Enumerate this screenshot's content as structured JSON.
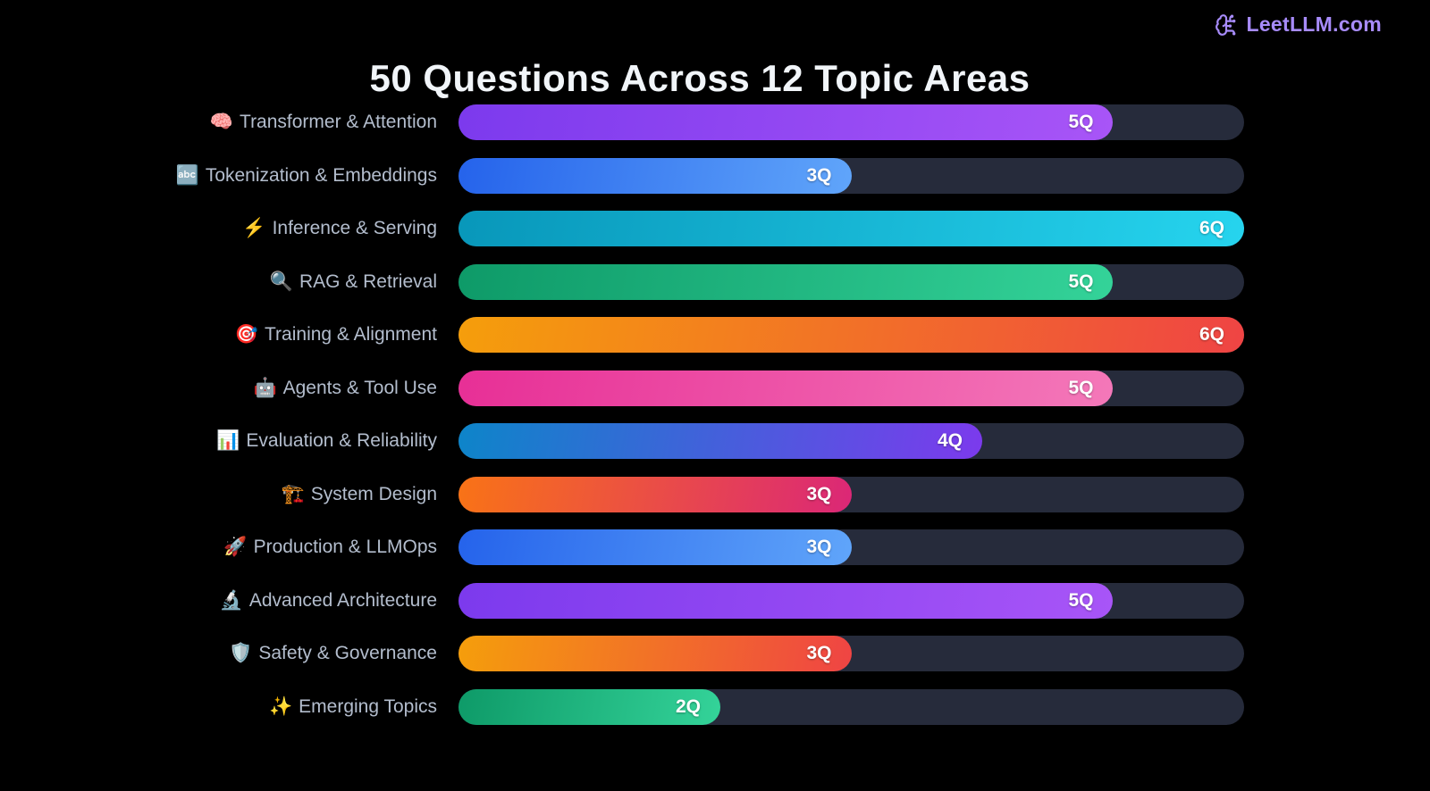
{
  "logo": {
    "brand": "LeetLLM.com",
    "icon": "brain-circuit-icon",
    "accent_color": "#a78bfa"
  },
  "title": "50 Questions Across 12 Topic Areas",
  "chart_data": {
    "type": "bar",
    "orientation": "horizontal",
    "title": "50 Questions Across 12 Topic Areas",
    "total_questions": 50,
    "topic_count": 12,
    "unit": "questions",
    "value_suffix": "Q",
    "xlim": [
      0,
      6
    ],
    "grid": false,
    "legend": false,
    "background_color": "#000000",
    "track_color": "#262b3b",
    "label_color": "#b3bdcd",
    "categories": [
      "Transformer & Attention",
      "Tokenization & Embeddings",
      "Inference & Serving",
      "RAG & Retrieval",
      "Training & Alignment",
      "Agents & Tool Use",
      "Evaluation & Reliability",
      "System Design",
      "Production & LLMOps",
      "Advanced Architecture",
      "Safety & Governance",
      "Emerging Topics"
    ],
    "values": [
      5,
      3,
      6,
      5,
      6,
      5,
      4,
      3,
      3,
      5,
      3,
      2
    ],
    "bars": [
      {
        "icon": "🧠",
        "icon_name": "brain-emoji",
        "label": "Transformer & Attention",
        "value": 5,
        "value_label": "5Q",
        "gradient": [
          "#7c3aed",
          "#a855f7"
        ]
      },
      {
        "icon": "🔤",
        "icon_name": "abc-input-emoji",
        "label": "Tokenization & Embeddings",
        "value": 3,
        "value_label": "3Q",
        "gradient": [
          "#2563eb",
          "#60a5fa"
        ]
      },
      {
        "icon": "⚡",
        "icon_name": "lightning-emoji",
        "label": "Inference & Serving",
        "value": 6,
        "value_label": "6Q",
        "gradient": [
          "#0897ba",
          "#26d4ee"
        ]
      },
      {
        "icon": "🔍",
        "icon_name": "magnifier-emoji",
        "label": "RAG & Retrieval",
        "value": 5,
        "value_label": "5Q",
        "gradient": [
          "#0e9a68",
          "#34d399"
        ]
      },
      {
        "icon": "🎯",
        "icon_name": "target-emoji",
        "label": "Training & Alignment",
        "value": 6,
        "value_label": "6Q",
        "gradient": [
          "#f59e0b",
          "#ef4444"
        ]
      },
      {
        "icon": "🤖",
        "icon_name": "robot-emoji",
        "label": "Agents & Tool Use",
        "value": 5,
        "value_label": "5Q",
        "gradient": [
          "#e72f96",
          "#f478b9"
        ]
      },
      {
        "icon": "📊",
        "icon_name": "bar-chart-emoji",
        "label": "Evaluation & Reliability",
        "value": 4,
        "value_label": "4Q",
        "gradient": [
          "#0d85c9",
          "#7c3aed"
        ]
      },
      {
        "icon": "🏗️",
        "icon_name": "construction-crane-emoji",
        "label": "System Design",
        "value": 3,
        "value_label": "3Q",
        "gradient": [
          "#f97316",
          "#db2777"
        ]
      },
      {
        "icon": "🚀",
        "icon_name": "rocket-emoji",
        "label": "Production & LLMOps",
        "value": 3,
        "value_label": "3Q",
        "gradient": [
          "#2563eb",
          "#60a5fa"
        ]
      },
      {
        "icon": "🔬",
        "icon_name": "microscope-emoji",
        "label": "Advanced Architecture",
        "value": 5,
        "value_label": "5Q",
        "gradient": [
          "#7c3aed",
          "#a855f7"
        ]
      },
      {
        "icon": "🛡️",
        "icon_name": "shield-emoji",
        "label": "Safety & Governance",
        "value": 3,
        "value_label": "3Q",
        "gradient": [
          "#f59e0b",
          "#ef4444"
        ]
      },
      {
        "icon": "✨",
        "icon_name": "sparkles-emoji",
        "label": "Emerging Topics",
        "value": 2,
        "value_label": "2Q",
        "gradient": [
          "#0e9a68",
          "#34d399"
        ]
      }
    ]
  }
}
